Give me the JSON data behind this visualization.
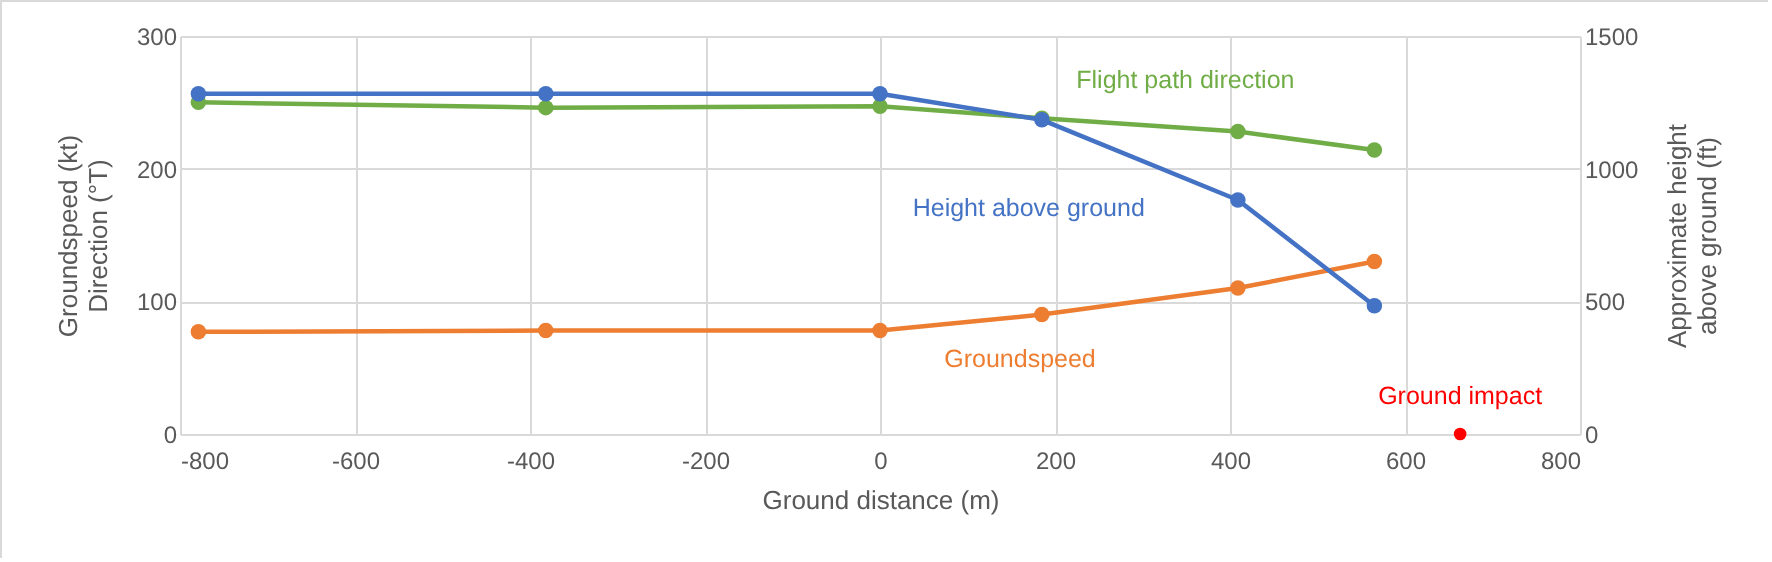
{
  "chart_data": {
    "type": "line",
    "xlabel": "Ground distance (m)",
    "ylabel": "Groundspeed (kt) Direction (°T)",
    "y2label": "Approximate height above ground (ft)",
    "xlim": [
      -800,
      800
    ],
    "xticks": [
      -800,
      -600,
      -400,
      -200,
      0,
      200,
      400,
      600,
      800
    ],
    "ylim": [
      0,
      300
    ],
    "yticks": [
      0,
      100,
      200,
      300
    ],
    "y2lim": [
      0,
      1500
    ],
    "y2ticks": [
      0,
      500,
      1000,
      1500
    ],
    "grid": true,
    "marker": "circle",
    "series": [
      {
        "name": "Groundspeed",
        "color": "#ed7d31",
        "x": [
          -779,
          -382,
          0,
          185,
          409,
          565
        ],
        "values": [
          77,
          78,
          78,
          90,
          110,
          130
        ]
      },
      {
        "name": "Flight path direction",
        "color": "#70ad47",
        "x": [
          -779,
          -382,
          0,
          185,
          409,
          565
        ],
        "values": [
          250,
          246,
          247,
          238,
          228,
          214
        ]
      },
      {
        "name": "Height above ground",
        "color": "#4472c4",
        "axis": "y2",
        "x": [
          -779,
          -382,
          0,
          185,
          409,
          565
        ],
        "values": [
          1282,
          1282,
          1282,
          1184,
          882,
          483
        ]
      },
      {
        "name": "Ground impact",
        "color": "#ff0000",
        "type": "scatter",
        "x": [
          663
        ],
        "values": [
          0
        ]
      }
    ]
  }
}
